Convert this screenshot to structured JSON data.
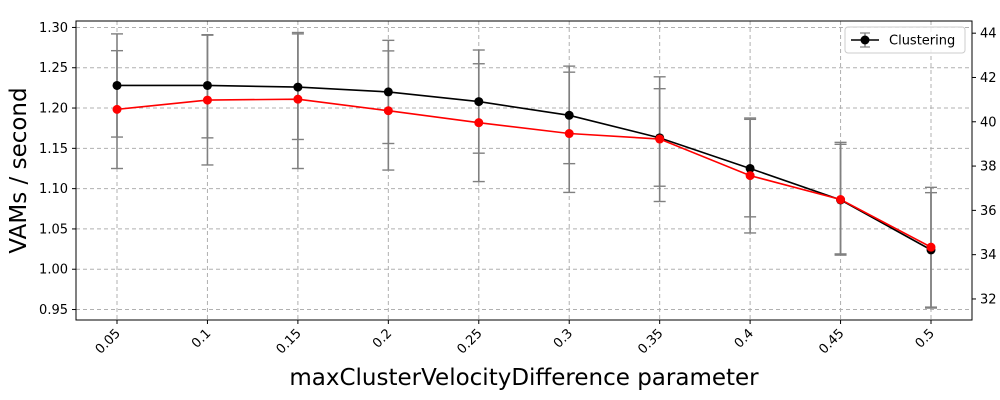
{
  "chart_data": {
    "type": "line",
    "title": "",
    "xlabel": "maxClusterVelocityDifference parameter",
    "ylabel": "VAMs / second",
    "categories": [
      "0.05",
      "0.1",
      "0.15",
      "0.2",
      "0.25",
      "0.3",
      "0.35",
      "0.4",
      "0.45",
      "0.5"
    ],
    "ylim": [
      0.937,
      1.308
    ],
    "yticks": [
      "0.95",
      "1.00",
      "1.05",
      "1.10",
      "1.15",
      "1.20",
      "1.25",
      "1.30"
    ],
    "y2lim": [
      31.05,
      44.55
    ],
    "y2ticks": [
      "32",
      "34",
      "36",
      "38",
      "40",
      "42",
      "44"
    ],
    "grid": true,
    "legend_position": "top-right",
    "series": [
      {
        "name": "Clustering",
        "axis": "left",
        "color": "#000000",
        "values": [
          1.228,
          1.228,
          1.226,
          1.22,
          1.208,
          1.191,
          1.163,
          1.125,
          1.086,
          1.024
        ],
        "err_low": [
          1.164,
          1.163,
          1.161,
          1.156,
          1.144,
          1.131,
          1.103,
          1.065,
          1.019,
          0.953
        ],
        "err_high": [
          1.292,
          1.291,
          1.292,
          1.284,
          1.272,
          1.252,
          1.224,
          1.186,
          1.155,
          1.095
        ]
      },
      {
        "name": "",
        "axis": "right",
        "color": "#ff0000",
        "values": [
          40.56,
          40.98,
          41.02,
          40.5,
          39.96,
          39.47,
          39.22,
          37.57,
          36.49,
          34.34
        ],
        "err_low": [
          37.89,
          38.05,
          37.89,
          37.82,
          37.3,
          36.81,
          36.4,
          34.98,
          33.98,
          31.59
        ],
        "err_high": [
          43.21,
          43.91,
          44.03,
          43.2,
          42.62,
          42.24,
          42.03,
          40.17,
          39.07,
          37.04
        ]
      }
    ]
  }
}
